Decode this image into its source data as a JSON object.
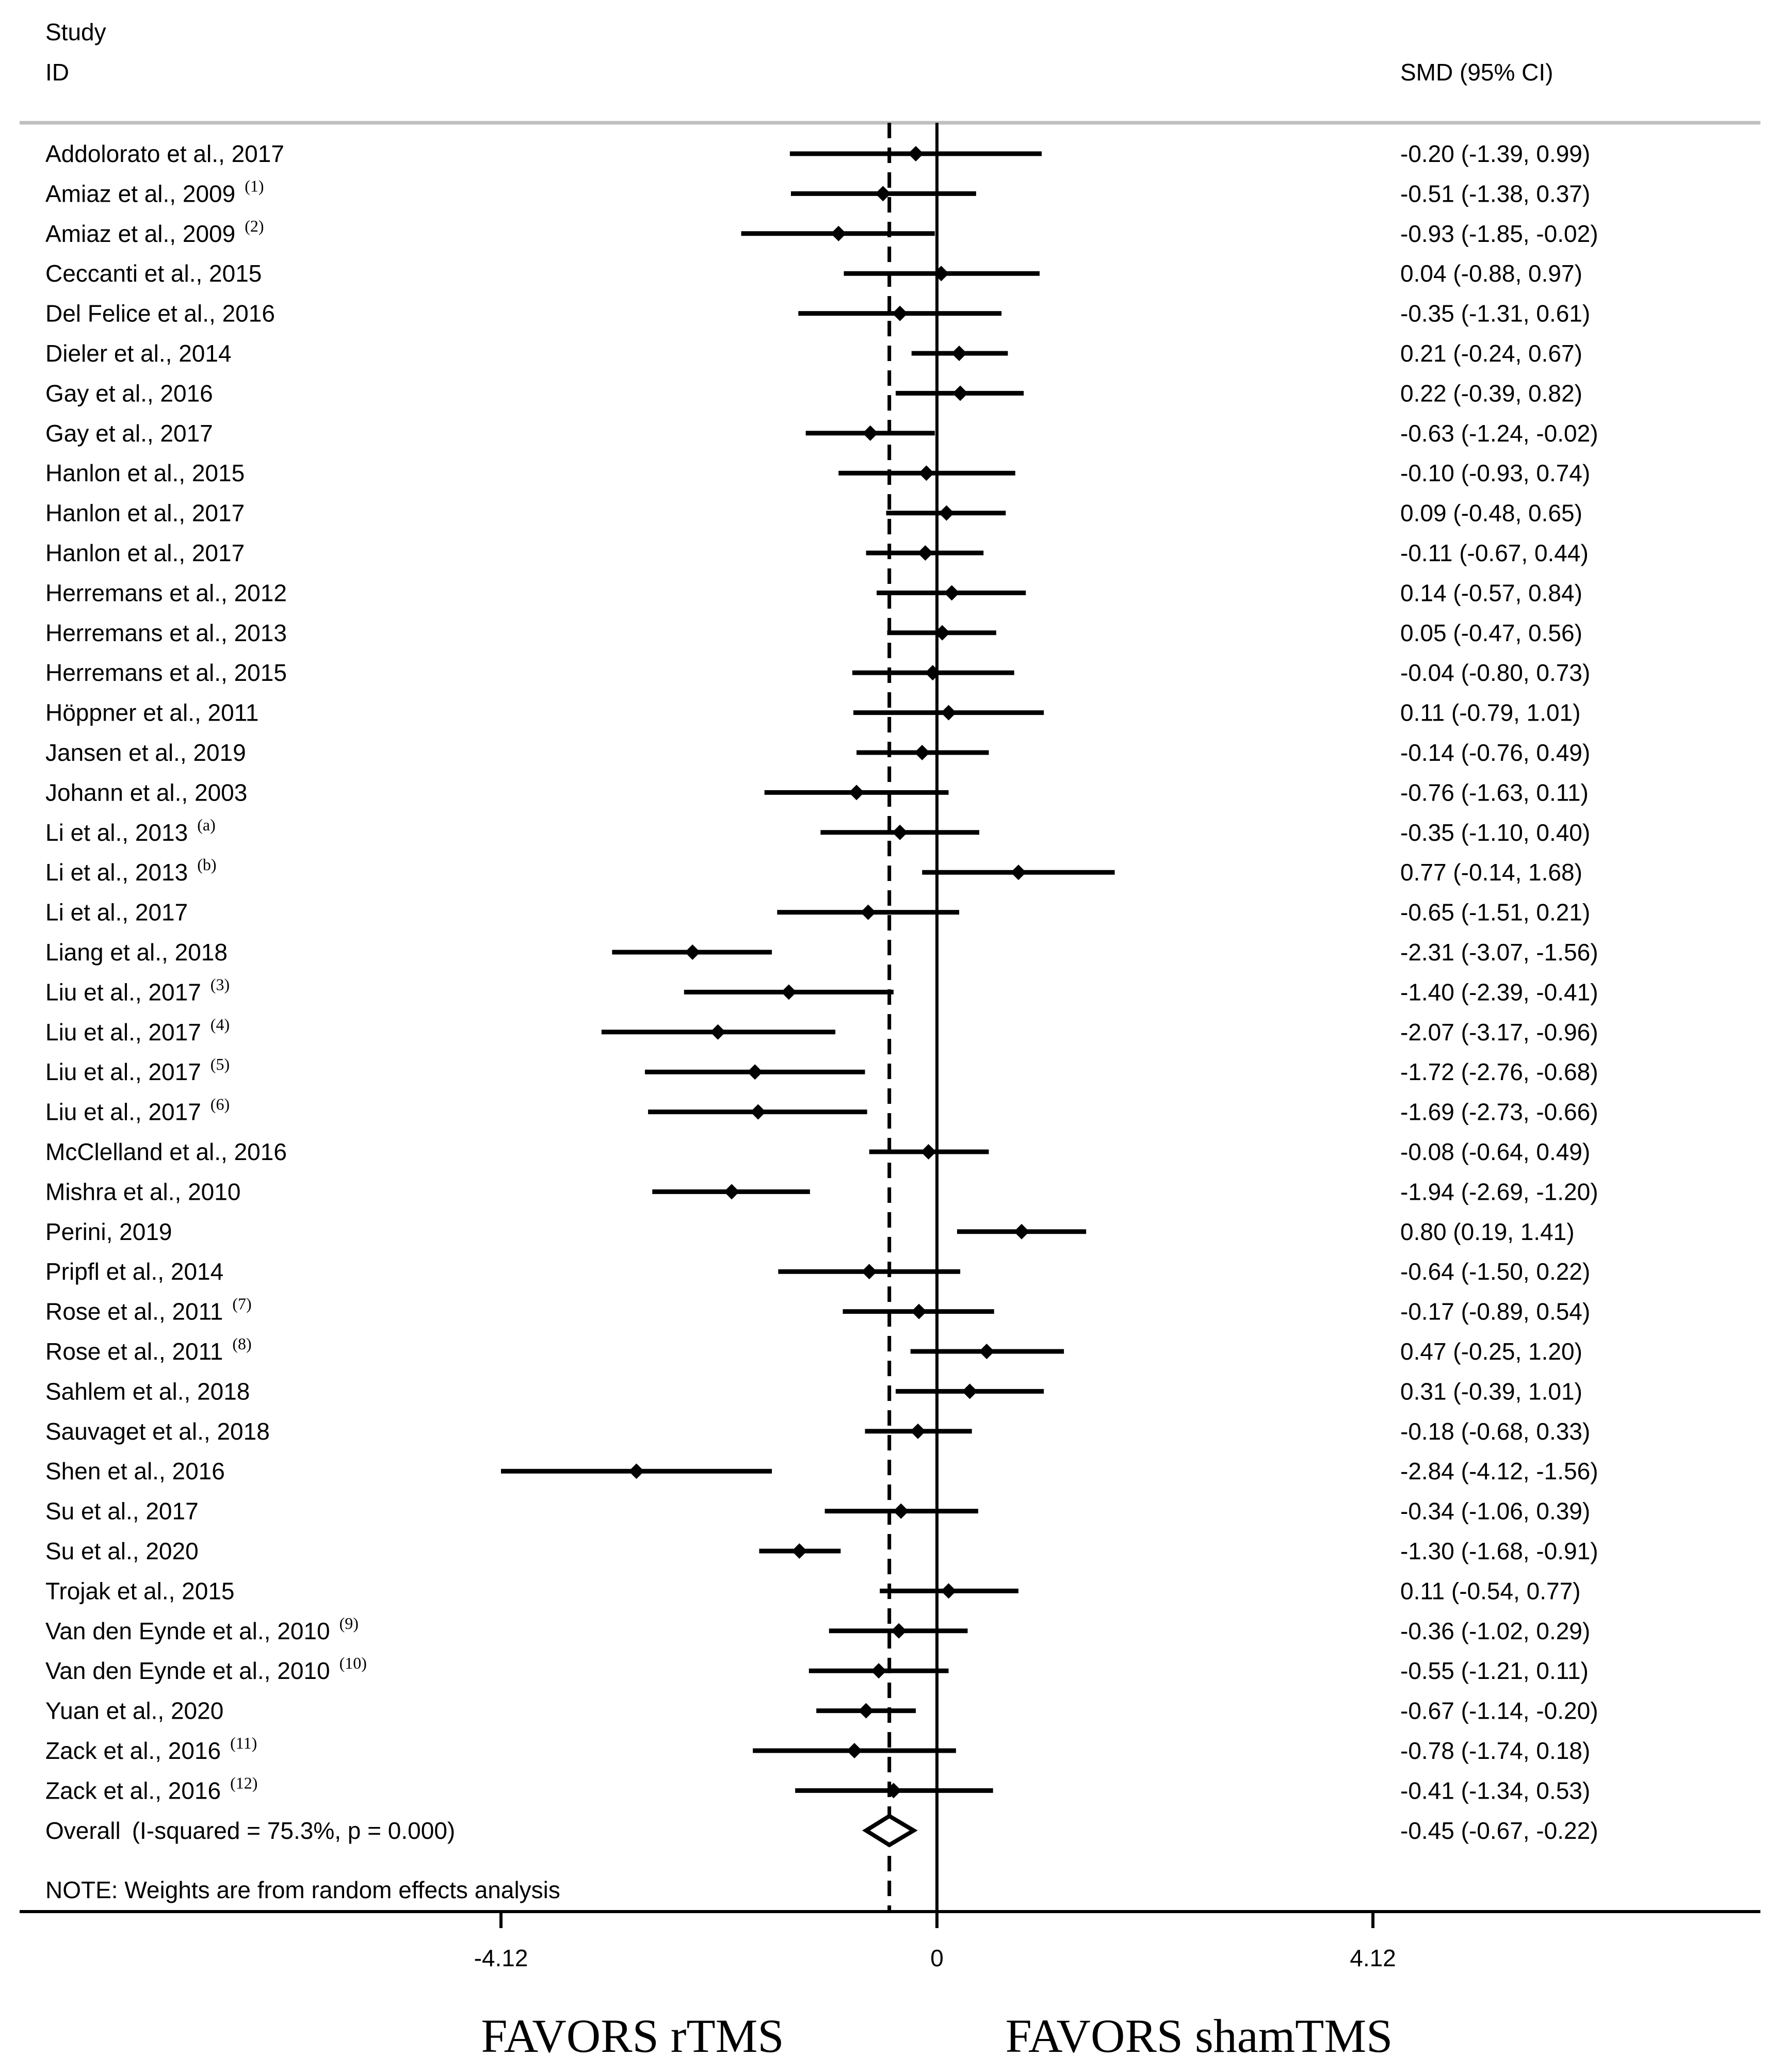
{
  "header": {
    "study_label": "Study",
    "id_label": "ID",
    "estimate_label": "SMD (95% CI)"
  },
  "colors": {
    "ink": "#000000",
    "header_rule": "#bfbfbf",
    "background": "#ffffff"
  },
  "note": "NOTE: Weights are from random effects analysis",
  "chart_data": {
    "type": "forest",
    "measure": "SMD",
    "x_ticks": [
      {
        "value": -4.12,
        "label": "-4.12"
      },
      {
        "value": 0,
        "label": "0"
      },
      {
        "value": 4.12,
        "label": "4.12"
      }
    ],
    "null_line": 0,
    "overall_line": -0.45,
    "favors_left": "FAVORS rTMS",
    "favors_right": "FAVORS shamTMS",
    "studies": [
      {
        "name": "Addolorato et al., 2017",
        "sup": "",
        "est": -0.2,
        "lo": -1.39,
        "hi": 0.99,
        "ci_text": "-0.20 (-1.39, 0.99)"
      },
      {
        "name": "Amiaz et al., 2009",
        "sup": "(1)",
        "est": -0.51,
        "lo": -1.38,
        "hi": 0.37,
        "ci_text": "-0.51 (-1.38, 0.37)"
      },
      {
        "name": "Amiaz et al., 2009",
        "sup": "(2)",
        "est": -0.93,
        "lo": -1.85,
        "hi": -0.02,
        "ci_text": "-0.93 (-1.85, -0.02)"
      },
      {
        "name": "Ceccanti et al., 2015",
        "sup": "",
        "est": 0.04,
        "lo": -0.88,
        "hi": 0.97,
        "ci_text": "0.04 (-0.88, 0.97)"
      },
      {
        "name": "Del Felice et al., 2016",
        "sup": "",
        "est": -0.35,
        "lo": -1.31,
        "hi": 0.61,
        "ci_text": "-0.35 (-1.31, 0.61)"
      },
      {
        "name": "Dieler et al., 2014",
        "sup": "",
        "est": 0.21,
        "lo": -0.24,
        "hi": 0.67,
        "ci_text": "0.21 (-0.24, 0.67)"
      },
      {
        "name": "Gay et al., 2016",
        "sup": "",
        "est": 0.22,
        "lo": -0.39,
        "hi": 0.82,
        "ci_text": "0.22 (-0.39, 0.82)"
      },
      {
        "name": "Gay et al., 2017",
        "sup": "",
        "est": -0.63,
        "lo": -1.24,
        "hi": -0.02,
        "ci_text": "-0.63 (-1.24, -0.02)"
      },
      {
        "name": "Hanlon et al., 2015",
        "sup": "",
        "est": -0.1,
        "lo": -0.93,
        "hi": 0.74,
        "ci_text": "-0.10 (-0.93, 0.74)"
      },
      {
        "name": "Hanlon et al., 2017",
        "sup": "",
        "est": 0.09,
        "lo": -0.48,
        "hi": 0.65,
        "ci_text": "0.09 (-0.48, 0.65)"
      },
      {
        "name": "Hanlon et al., 2017",
        "sup": "",
        "est": -0.11,
        "lo": -0.67,
        "hi": 0.44,
        "ci_text": "-0.11 (-0.67, 0.44)"
      },
      {
        "name": "Herremans et al., 2012",
        "sup": "",
        "est": 0.14,
        "lo": -0.57,
        "hi": 0.84,
        "ci_text": "0.14 (-0.57, 0.84)"
      },
      {
        "name": "Herremans et al., 2013",
        "sup": "",
        "est": 0.05,
        "lo": -0.47,
        "hi": 0.56,
        "ci_text": "0.05 (-0.47, 0.56)"
      },
      {
        "name": "Herremans et al., 2015",
        "sup": "",
        "est": -0.04,
        "lo": -0.8,
        "hi": 0.73,
        "ci_text": "-0.04 (-0.80, 0.73)"
      },
      {
        "name": "Höppner et al., 2011",
        "sup": "",
        "est": 0.11,
        "lo": -0.79,
        "hi": 1.01,
        "ci_text": "0.11 (-0.79, 1.01)"
      },
      {
        "name": "Jansen et al., 2019",
        "sup": "",
        "est": -0.14,
        "lo": -0.76,
        "hi": 0.49,
        "ci_text": "-0.14 (-0.76, 0.49)"
      },
      {
        "name": "Johann et al., 2003",
        "sup": "",
        "est": -0.76,
        "lo": -1.63,
        "hi": 0.11,
        "ci_text": "-0.76 (-1.63, 0.11)"
      },
      {
        "name": "Li et al., 2013",
        "sup": "(a)",
        "est": -0.35,
        "lo": -1.1,
        "hi": 0.4,
        "ci_text": "-0.35 (-1.10, 0.40)"
      },
      {
        "name": "Li et al., 2013",
        "sup": "(b)",
        "est": 0.77,
        "lo": -0.14,
        "hi": 1.68,
        "ci_text": "0.77 (-0.14, 1.68)"
      },
      {
        "name": "Li et al., 2017",
        "sup": "",
        "est": -0.65,
        "lo": -1.51,
        "hi": 0.21,
        "ci_text": "-0.65 (-1.51, 0.21)"
      },
      {
        "name": "Liang et al., 2018",
        "sup": "",
        "est": -2.31,
        "lo": -3.07,
        "hi": -1.56,
        "ci_text": "-2.31 (-3.07, -1.56)"
      },
      {
        "name": "Liu et al., 2017",
        "sup": "(3)",
        "est": -1.4,
        "lo": -2.39,
        "hi": -0.41,
        "ci_text": "-1.40 (-2.39, -0.41)"
      },
      {
        "name": "Liu et al., 2017",
        "sup": "(4)",
        "est": -2.07,
        "lo": -3.17,
        "hi": -0.96,
        "ci_text": "-2.07 (-3.17, -0.96)"
      },
      {
        "name": "Liu et al., 2017",
        "sup": "(5)",
        "est": -1.72,
        "lo": -2.76,
        "hi": -0.68,
        "ci_text": "-1.72 (-2.76, -0.68)"
      },
      {
        "name": "Liu et al., 2017",
        "sup": "(6)",
        "est": -1.69,
        "lo": -2.73,
        "hi": -0.66,
        "ci_text": "-1.69 (-2.73, -0.66)"
      },
      {
        "name": "McClelland et al., 2016",
        "sup": "",
        "est": -0.08,
        "lo": -0.64,
        "hi": 0.49,
        "ci_text": "-0.08 (-0.64, 0.49)"
      },
      {
        "name": "Mishra et al., 2010",
        "sup": "",
        "est": -1.94,
        "lo": -2.69,
        "hi": -1.2,
        "ci_text": "-1.94 (-2.69, -1.20)"
      },
      {
        "name": "Perini, 2019",
        "sup": "",
        "est": 0.8,
        "lo": 0.19,
        "hi": 1.41,
        "ci_text": "0.80 (0.19, 1.41)"
      },
      {
        "name": "Pripfl et al., 2014",
        "sup": "",
        "est": -0.64,
        "lo": -1.5,
        "hi": 0.22,
        "ci_text": "-0.64 (-1.50, 0.22)"
      },
      {
        "name": "Rose et al., 2011",
        "sup": "(7)",
        "est": -0.17,
        "lo": -0.89,
        "hi": 0.54,
        "ci_text": "-0.17 (-0.89, 0.54)"
      },
      {
        "name": "Rose et al., 2011",
        "sup": "(8)",
        "est": 0.47,
        "lo": -0.25,
        "hi": 1.2,
        "ci_text": "0.47 (-0.25, 1.20)"
      },
      {
        "name": "Sahlem et al., 2018",
        "sup": "",
        "est": 0.31,
        "lo": -0.39,
        "hi": 1.01,
        "ci_text": "0.31 (-0.39, 1.01)"
      },
      {
        "name": "Sauvaget et al., 2018",
        "sup": "",
        "est": -0.18,
        "lo": -0.68,
        "hi": 0.33,
        "ci_text": "-0.18 (-0.68, 0.33)"
      },
      {
        "name": "Shen et al., 2016",
        "sup": "",
        "est": -2.84,
        "lo": -4.12,
        "hi": -1.56,
        "ci_text": "-2.84 (-4.12, -1.56)"
      },
      {
        "name": "Su et al., 2017",
        "sup": "",
        "est": -0.34,
        "lo": -1.06,
        "hi": 0.39,
        "ci_text": "-0.34 (-1.06, 0.39)"
      },
      {
        "name": "Su et al., 2020",
        "sup": "",
        "est": -1.3,
        "lo": -1.68,
        "hi": -0.91,
        "ci_text": "-1.30 (-1.68, -0.91)"
      },
      {
        "name": "Trojak et al., 2015",
        "sup": "",
        "est": 0.11,
        "lo": -0.54,
        "hi": 0.77,
        "ci_text": "0.11 (-0.54, 0.77)"
      },
      {
        "name": "Van den Eynde et al., 2010",
        "sup": "(9)",
        "est": -0.36,
        "lo": -1.02,
        "hi": 0.29,
        "ci_text": "-0.36 (-1.02, 0.29)"
      },
      {
        "name": "Van den Eynde et al., 2010",
        "sup": "(10)",
        "est": -0.55,
        "lo": -1.21,
        "hi": 0.11,
        "ci_text": "-0.55 (-1.21, 0.11)"
      },
      {
        "name": "Yuan et al., 2020",
        "sup": "",
        "est": -0.67,
        "lo": -1.14,
        "hi": -0.2,
        "ci_text": "-0.67 (-1.14, -0.20)"
      },
      {
        "name": "Zack et al., 2016",
        "sup": "(11)",
        "est": -0.78,
        "lo": -1.74,
        "hi": 0.18,
        "ci_text": "-0.78 (-1.74, 0.18)"
      },
      {
        "name": "Zack et al., 2016",
        "sup": "(12)",
        "est": -0.41,
        "lo": -1.34,
        "hi": 0.53,
        "ci_text": "-0.41 (-1.34, 0.53)"
      }
    ],
    "overall": {
      "name": "Overall",
      "stat_text": "(I-squared = 75.3%, p = 0.000)",
      "est": -0.45,
      "lo": -0.67,
      "hi": -0.22,
      "ci_text": "-0.45 (-0.67, -0.22)"
    }
  }
}
